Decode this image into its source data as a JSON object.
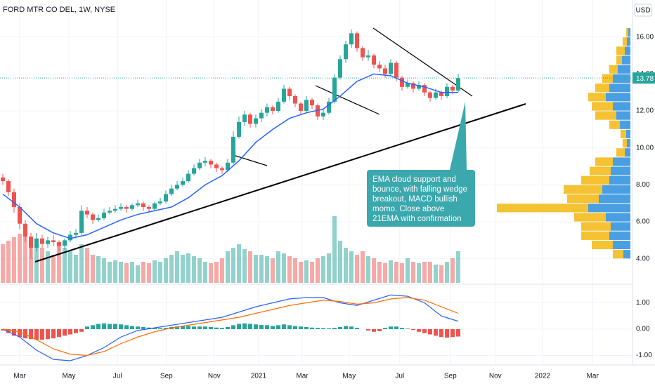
{
  "chart_data": [
    {
      "type": "candlestick",
      "title": "FORD MTR CO DEL, 1W, NYSE",
      "currency": "USD",
      "up_color": "#26a69a",
      "down_color": "#ef5350",
      "volume_up_color": "rgba(38,166,154,0.5)",
      "volume_down_color": "rgba(239,83,80,0.5)",
      "ylim": [
        2.7,
        18.0
      ],
      "yticks": [
        {
          "value": 4,
          "label": "4.00"
        },
        {
          "value": 6,
          "label": "6.00"
        },
        {
          "value": 8,
          "label": "8.00"
        },
        {
          "value": 10,
          "label": "10.00"
        },
        {
          "value": 12,
          "label": "12.00"
        },
        {
          "value": 14,
          "label": "14.00"
        },
        {
          "value": 16,
          "label": "16.00"
        }
      ],
      "grid": true,
      "candles": [
        [
          8.4,
          8.6,
          8.0,
          8.2
        ],
        [
          8.2,
          8.3,
          7.4,
          7.6
        ],
        [
          7.6,
          7.8,
          6.5,
          6.8
        ],
        [
          6.8,
          7.0,
          5.6,
          5.9
        ],
        [
          5.9,
          6.1,
          4.9,
          5.2
        ],
        [
          5.2,
          5.4,
          4.0,
          4.6
        ],
        [
          4.6,
          5.4,
          4.4,
          5.1
        ],
        [
          5.1,
          5.3,
          4.6,
          4.8
        ],
        [
          4.8,
          5.2,
          4.6,
          5.0
        ],
        [
          5.0,
          5.3,
          4.7,
          4.9
        ],
        [
          4.9,
          5.0,
          4.4,
          4.7
        ],
        [
          4.7,
          5.1,
          4.5,
          5.0
        ],
        [
          5.0,
          5.5,
          4.9,
          5.3
        ],
        [
          5.3,
          5.6,
          5.1,
          5.4
        ],
        [
          5.4,
          6.9,
          5.3,
          6.6
        ],
        [
          6.6,
          6.8,
          6.2,
          6.4
        ],
        [
          6.4,
          6.5,
          5.9,
          6.1
        ],
        [
          6.1,
          6.4,
          6.0,
          6.2
        ],
        [
          6.2,
          6.7,
          6.1,
          6.5
        ],
        [
          6.5,
          6.8,
          6.4,
          6.6
        ],
        [
          6.6,
          6.9,
          6.5,
          6.7
        ],
        [
          6.7,
          7.0,
          6.6,
          6.8
        ],
        [
          6.8,
          6.9,
          6.5,
          6.7
        ],
        [
          6.7,
          7.0,
          6.6,
          6.9
        ],
        [
          6.9,
          7.2,
          6.8,
          7.0
        ],
        [
          7.0,
          7.1,
          6.6,
          6.8
        ],
        [
          6.8,
          6.9,
          6.5,
          6.7
        ],
        [
          6.7,
          7.1,
          6.6,
          7.0
        ],
        [
          7.0,
          7.3,
          6.9,
          7.1
        ],
        [
          7.1,
          7.7,
          7.0,
          7.5
        ],
        [
          7.5,
          8.0,
          7.4,
          7.8
        ],
        [
          7.8,
          8.2,
          7.7,
          8.0
        ],
        [
          8.0,
          8.4,
          7.9,
          8.2
        ],
        [
          8.2,
          8.8,
          8.1,
          8.6
        ],
        [
          8.6,
          9.1,
          8.5,
          8.9
        ],
        [
          8.9,
          9.4,
          8.8,
          9.2
        ],
        [
          9.2,
          9.5,
          9.0,
          9.3
        ],
        [
          9.3,
          9.4,
          8.9,
          9.1
        ],
        [
          9.1,
          9.2,
          8.7,
          8.9
        ],
        [
          8.9,
          9.0,
          8.6,
          8.8
        ],
        [
          8.8,
          9.4,
          8.7,
          9.2
        ],
        [
          9.2,
          10.9,
          9.1,
          10.6
        ],
        [
          10.6,
          11.7,
          10.5,
          11.4
        ],
        [
          11.4,
          12.0,
          11.2,
          11.8
        ],
        [
          11.8,
          11.9,
          11.1,
          11.3
        ],
        [
          11.3,
          11.8,
          11.1,
          11.6
        ],
        [
          11.6,
          12.1,
          11.4,
          11.9
        ],
        [
          11.9,
          12.4,
          11.7,
          12.2
        ],
        [
          12.2,
          12.3,
          11.8,
          12.0
        ],
        [
          12.0,
          12.7,
          11.9,
          12.5
        ],
        [
          12.5,
          13.4,
          12.4,
          13.2
        ],
        [
          13.2,
          13.3,
          12.6,
          12.8
        ],
        [
          12.8,
          12.9,
          12.2,
          12.4
        ],
        [
          12.4,
          12.5,
          11.8,
          12.0
        ],
        [
          12.0,
          12.8,
          11.9,
          12.6
        ],
        [
          12.6,
          12.7,
          12.1,
          12.3
        ],
        [
          12.3,
          12.4,
          11.5,
          11.7
        ],
        [
          11.7,
          12.1,
          11.5,
          11.9
        ],
        [
          11.9,
          12.7,
          11.8,
          12.5
        ],
        [
          12.5,
          14.0,
          12.4,
          13.8
        ],
        [
          13.8,
          15.0,
          13.7,
          14.8
        ],
        [
          14.8,
          15.8,
          14.6,
          15.6
        ],
        [
          15.6,
          16.4,
          15.4,
          16.2
        ],
        [
          16.2,
          16.3,
          15.2,
          15.4
        ],
        [
          15.4,
          15.5,
          14.7,
          14.9
        ],
        [
          14.9,
          15.3,
          14.7,
          15.0
        ],
        [
          15.0,
          15.1,
          14.3,
          14.5
        ],
        [
          14.5,
          14.7,
          14.1,
          14.3
        ],
        [
          14.3,
          14.5,
          13.8,
          14.0
        ],
        [
          14.0,
          14.8,
          13.9,
          14.6
        ],
        [
          14.6,
          14.7,
          13.6,
          13.8
        ],
        [
          13.8,
          13.9,
          13.1,
          13.3
        ],
        [
          13.3,
          13.7,
          13.2,
          13.5
        ],
        [
          13.5,
          13.6,
          13.0,
          13.2
        ],
        [
          13.2,
          13.6,
          13.1,
          13.4
        ],
        [
          13.4,
          13.5,
          12.8,
          13.0
        ],
        [
          13.0,
          13.1,
          12.5,
          12.7
        ],
        [
          12.7,
          13.2,
          12.6,
          13.0
        ],
        [
          13.0,
          13.1,
          12.6,
          12.8
        ],
        [
          12.8,
          13.5,
          12.7,
          13.3
        ],
        [
          13.3,
          13.4,
          12.9,
          13.1
        ],
        [
          13.1,
          14.0,
          13.0,
          13.78
        ]
      ],
      "volume_ylim": [
        0,
        130
      ],
      "volume": [
        55,
        60,
        65,
        70,
        75,
        65,
        60,
        50,
        45,
        40,
        55,
        50,
        45,
        40,
        55,
        50,
        40,
        38,
        35,
        30,
        32,
        30,
        28,
        30,
        25,
        30,
        28,
        32,
        30,
        35,
        40,
        45,
        40,
        42,
        38,
        35,
        30,
        28,
        30,
        35,
        45,
        50,
        55,
        48,
        45,
        40,
        40,
        38,
        35,
        45,
        42,
        38,
        35,
        30,
        32,
        30,
        35,
        38,
        42,
        95,
        60,
        50,
        45,
        40,
        45,
        38,
        35,
        30,
        28,
        32,
        30,
        28,
        35,
        30,
        28,
        30,
        30,
        26,
        25,
        30,
        35,
        45
      ],
      "ema": {
        "color": "#2962ff",
        "x": [
          0,
          3,
          6,
          9,
          12,
          15,
          18,
          21,
          24,
          27,
          30,
          33,
          36,
          39,
          42,
          45,
          48,
          51,
          54,
          57,
          60,
          63,
          66,
          69,
          72,
          75,
          78,
          81
        ],
        "values": [
          7.5,
          6.8,
          5.9,
          5.4,
          5.1,
          5.3,
          5.7,
          6.1,
          6.4,
          6.6,
          6.8,
          7.3,
          8.0,
          8.5,
          9.3,
          10.3,
          11.0,
          11.6,
          11.9,
          12.1,
          12.8,
          13.6,
          14.0,
          13.9,
          13.5,
          13.3,
          13.0,
          13.0
        ]
      },
      "last_price": 13.78,
      "last_price_color": "#26a69a",
      "profile": {
        "up_color": "#4a9fe3",
        "down_color": "#f5c233",
        "xlim": [
          0,
          200
        ],
        "prices": [
          4.25,
          4.75,
          5.25,
          5.75,
          6.25,
          6.75,
          7.25,
          7.75,
          8.25,
          8.75,
          9.25,
          9.75,
          10.25,
          10.75,
          11.25,
          11.75,
          12.25,
          12.75,
          13.25,
          13.75,
          14.25,
          14.75,
          15.25,
          15.75,
          16.25
        ],
        "up": [
          10,
          25,
          30,
          28,
          35,
          60,
          45,
          40,
          30,
          28,
          25,
          8,
          5,
          6,
          15,
          20,
          25,
          35,
          30,
          25,
          18,
          12,
          8,
          5,
          3
        ],
        "down": [
          15,
          30,
          40,
          42,
          45,
          130,
          45,
          55,
          40,
          30,
          25,
          12,
          6,
          8,
          15,
          30,
          30,
          25,
          20,
          15,
          12,
          8,
          12,
          6,
          3
        ]
      },
      "annotation": "EMA cloud support and bounce, with falling wedge breakout, MACD bullish momo. Close above 21EMA with confirmation"
    },
    {
      "type": "line",
      "ylim": [
        -1.36,
        1.68
      ],
      "yticks": [
        {
          "value": -1,
          "label": "-1.00"
        },
        {
          "value": 0,
          "label": "0.00"
        },
        {
          "value": 1,
          "label": "1.00"
        }
      ],
      "x": [
        0,
        3,
        6,
        9,
        12,
        15,
        18,
        21,
        24,
        27,
        30,
        33,
        36,
        39,
        42,
        45,
        48,
        51,
        54,
        57,
        60,
        63,
        66,
        69,
        72,
        75,
        78,
        81
      ],
      "series": [
        {
          "color": "#2962ff",
          "values": [
            0,
            -0.3,
            -0.8,
            -1.15,
            -1.2,
            -1.0,
            -0.7,
            -0.3,
            -0.05,
            0.05,
            0.15,
            0.25,
            0.35,
            0.45,
            0.65,
            0.85,
            1.0,
            1.15,
            1.2,
            1.2,
            1.0,
            0.9,
            1.1,
            1.3,
            1.25,
            1.0,
            0.5,
            0.3
          ]
        },
        {
          "color": "#ff6d00",
          "values": [
            0,
            -0.1,
            -0.4,
            -0.75,
            -0.95,
            -1.0,
            -0.85,
            -0.55,
            -0.3,
            -0.1,
            0.05,
            0.15,
            0.25,
            0.35,
            0.45,
            0.6,
            0.75,
            0.9,
            1.0,
            1.1,
            1.05,
            0.95,
            1.0,
            1.15,
            1.2,
            1.1,
            0.85,
            0.6
          ]
        }
      ],
      "histogram": [
        -0.05,
        -0.15,
        -0.25,
        -0.3,
        -0.35,
        -0.38,
        -0.4,
        -0.4,
        -0.38,
        -0.35,
        -0.3,
        -0.25,
        -0.2,
        -0.15,
        -0.1,
        0.1,
        0.15,
        0.2,
        0.22,
        0.2,
        0.2,
        0.18,
        0.15,
        0.12,
        0.1,
        0.08,
        0.06,
        0.05,
        0.04,
        0.05,
        0.08,
        0.1,
        0.12,
        0.12,
        0.1,
        0.1,
        0.1,
        0.08,
        0.06,
        0.05,
        0.08,
        0.15,
        0.2,
        0.22,
        0.2,
        0.18,
        0.16,
        0.15,
        0.12,
        0.15,
        0.18,
        0.15,
        0.12,
        0.1,
        0.08,
        0.06,
        0.05,
        0.04,
        0.03,
        0.05,
        0.08,
        0.12,
        0.1,
        0.05,
        0.0,
        -0.05,
        -0.1,
        -0.08,
        0.05,
        0.1,
        0.1,
        0.05,
        0.02,
        -0.03,
        -0.1,
        -0.15,
        -0.2,
        -0.25,
        -0.3,
        -0.32,
        -0.3,
        -0.28
      ],
      "histogram_up_color": "#26a69a",
      "histogram_down_color": "#ef5350",
      "xlim": [
        -0.5,
        112
      ],
      "xticks": [
        {
          "value": 3,
          "label": "Mar"
        },
        {
          "value": 11.75,
          "label": "May"
        },
        {
          "value": 20.4,
          "label": "Jul"
        },
        {
          "value": 29.1,
          "label": "Sep"
        },
        {
          "value": 37.6,
          "label": "Nov"
        },
        {
          "value": 45.5,
          "label": "2021"
        },
        {
          "value": 53.25,
          "label": "Mar"
        },
        {
          "value": 61.6,
          "label": "May"
        },
        {
          "value": 70.6,
          "label": "Jul"
        },
        {
          "value": 79.6,
          "label": "Sep"
        },
        {
          "value": 87.6,
          "label": "Nov"
        },
        {
          "value": 96,
          "label": "2022"
        },
        {
          "value": 104.9,
          "label": "Mar"
        }
      ]
    }
  ]
}
